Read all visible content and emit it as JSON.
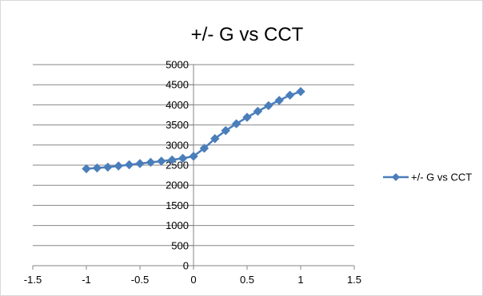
{
  "chart_data": {
    "type": "scatter",
    "title": "+/- G vs CCT",
    "xlabel": "",
    "ylabel": "",
    "xlim": [
      -1.5,
      1.5
    ],
    "ylim": [
      0,
      5000
    ],
    "x_ticks": [
      -1.5,
      -1,
      -0.5,
      0,
      0.5,
      1,
      1.5
    ],
    "x_tick_labels": [
      "-1.5",
      "-1",
      "-0.5",
      "0",
      "0.5",
      "1",
      "1.5"
    ],
    "y_ticks": [
      0,
      500,
      1000,
      1500,
      2000,
      2500,
      3000,
      3500,
      4000,
      4500,
      5000
    ],
    "y_tick_labels": [
      "0",
      "500",
      "1000",
      "1500",
      "2000",
      "2500",
      "3000",
      "3500",
      "4000",
      "4500",
      "5000"
    ],
    "grid": "horizontal",
    "legend_position": "right",
    "series": [
      {
        "name": "+/- G vs CCT",
        "color": "#4a7ebb",
        "marker": "diamond",
        "line": true,
        "points": [
          [
            -1.0,
            2410
          ],
          [
            -0.9,
            2430
          ],
          [
            -0.8,
            2450
          ],
          [
            -0.7,
            2480
          ],
          [
            -0.6,
            2510
          ],
          [
            -0.5,
            2540
          ],
          [
            -0.4,
            2570
          ],
          [
            -0.3,
            2600
          ],
          [
            -0.2,
            2630
          ],
          [
            -0.1,
            2670
          ],
          [
            0.0,
            2720
          ],
          [
            0.1,
            2920
          ],
          [
            0.2,
            3160
          ],
          [
            0.3,
            3360
          ],
          [
            0.4,
            3530
          ],
          [
            0.5,
            3690
          ],
          [
            0.6,
            3840
          ],
          [
            0.7,
            3980
          ],
          [
            0.8,
            4110
          ],
          [
            0.9,
            4240
          ],
          [
            1.0,
            4330
          ]
        ]
      }
    ]
  }
}
